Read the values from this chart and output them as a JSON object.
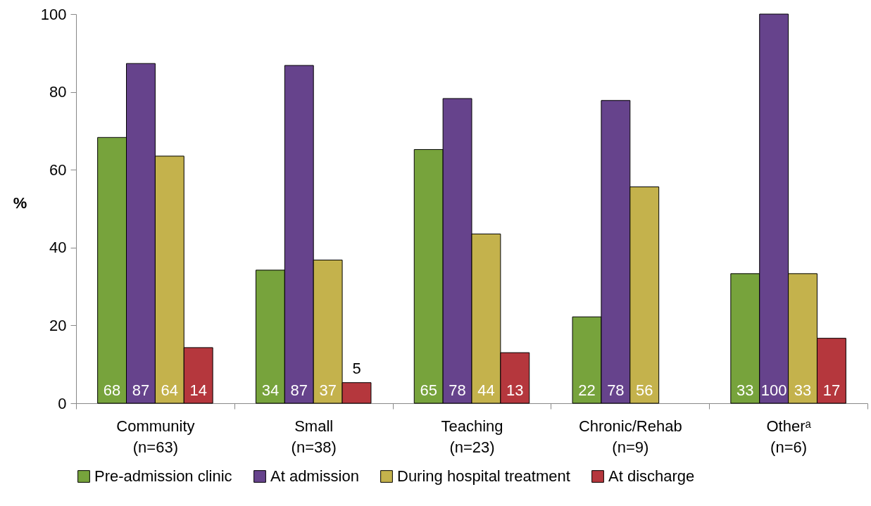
{
  "chart_data": {
    "type": "bar",
    "ylabel": "%",
    "categories": [
      "Community\n(n=63)",
      "Small\n(n=38)",
      "Teaching\n(n=23)",
      "Chronic/Rehab\n(n=9)",
      "Otherᵃ\n(n=6)"
    ],
    "series": [
      {
        "name": "Pre-admission clinic",
        "color": "#77a33c",
        "values": [
          68.3,
          34.2,
          65.2,
          22.2,
          33.3
        ],
        "value_labels": [
          "68",
          "34",
          "65",
          "22",
          "33"
        ]
      },
      {
        "name": "At admission",
        "color": "#66438c",
        "values": [
          87.3,
          86.8,
          78.3,
          77.8,
          100
        ],
        "value_labels": [
          "87",
          "87",
          "78",
          "78",
          "100"
        ]
      },
      {
        "name": "During hospital treatment",
        "color": "#c4b24c",
        "values": [
          63.5,
          36.8,
          43.5,
          55.6,
          33.3
        ],
        "value_labels": [
          "64",
          "37",
          "44",
          "56",
          "33"
        ]
      },
      {
        "name": "At discharge",
        "color": "#b5373d",
        "values": [
          14.3,
          5.3,
          13.0,
          null,
          16.7
        ],
        "value_labels": [
          "14",
          "5",
          "13",
          null,
          "17"
        ]
      }
    ],
    "ylim": [
      0,
      100
    ],
    "yticks": [
      0,
      20,
      40,
      60,
      80,
      100
    ],
    "grid": false,
    "legend": "bottom"
  }
}
